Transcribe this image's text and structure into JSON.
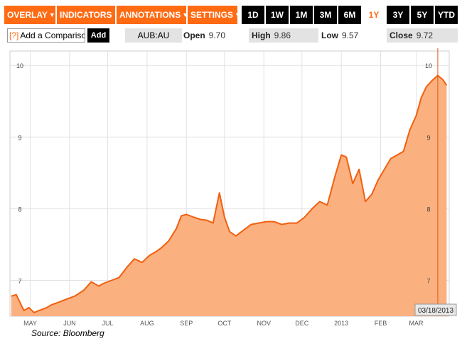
{
  "toolbar": {
    "menus": [
      {
        "label": "OVERLAY",
        "chevron": "▼"
      },
      {
        "label": "INDICATORS",
        "chevron": "▼"
      },
      {
        "label": "ANNOTATIONS",
        "chevron": "▼"
      },
      {
        "label": "SETTINGS",
        "chevron": "▼"
      }
    ],
    "ranges": [
      "1D",
      "1W",
      "1M",
      "3M",
      "6M",
      "1Y",
      "3Y",
      "5Y",
      "YTD"
    ],
    "active_range": "1Y"
  },
  "info_bar": {
    "comparison_help": "[?]",
    "comparison_placeholder": "Add a Comparison",
    "add_label": "Add",
    "ticker": "AUB:AU",
    "open_label": "Open",
    "open_value": "9.70",
    "high_label": "High",
    "high_value": "9.86",
    "low_label": "Low",
    "low_value": "9.57",
    "close_label": "Close",
    "close_value": "9.72"
  },
  "colors": {
    "accent": "#ff6a13",
    "area": "#fbb07f",
    "line": "#f06010"
  },
  "cursor_date": "03/18/2013",
  "source": "Source: Bloomberg",
  "chart_data": {
    "type": "area",
    "x_tick_labels": [
      "MAY",
      "JUN",
      "JUL",
      "AUG",
      "SEP",
      "OCT",
      "NOV",
      "DEC",
      "2013",
      "FEB",
      "MAR"
    ],
    "y_tick_labels": [
      "7",
      "8",
      "9",
      "10"
    ],
    "ylim": [
      6.5,
      10.2
    ],
    "grid": true,
    "series": [
      {
        "x": [
          "2012-04-16",
          "2012-04-20",
          "2012-04-24",
          "2012-04-26",
          "2012-04-30",
          "2012-05-04",
          "2012-05-08",
          "2012-05-14",
          "2012-05-18",
          "2012-05-24",
          "2012-05-30",
          "2012-06-05",
          "2012-06-12",
          "2012-06-18",
          "2012-06-24",
          "2012-06-28",
          "2012-07-04",
          "2012-07-10",
          "2012-07-16",
          "2012-07-22",
          "2012-07-28",
          "2012-08-03",
          "2012-08-08",
          "2012-08-12",
          "2012-08-18",
          "2012-08-24",
          "2012-08-28",
          "2012-09-01",
          "2012-09-07",
          "2012-09-12",
          "2012-09-17",
          "2012-09-22",
          "2012-09-27",
          "2012-10-01",
          "2012-10-05",
          "2012-10-10",
          "2012-10-16",
          "2012-10-22",
          "2012-10-28",
          "2012-11-03",
          "2012-11-09",
          "2012-11-15",
          "2012-11-21",
          "2012-11-27",
          "2012-12-03",
          "2012-12-09",
          "2012-12-15",
          "2012-12-21",
          "2012-12-27",
          "2013-01-01",
          "2013-01-05",
          "2013-01-10",
          "2013-01-15",
          "2013-01-20",
          "2013-01-25",
          "2013-01-30",
          "2013-02-04",
          "2013-02-09",
          "2013-02-14",
          "2013-02-19",
          "2013-02-24",
          "2013-03-01",
          "2013-03-05",
          "2013-03-09",
          "2013-03-13",
          "2013-03-18",
          "2013-03-22",
          "2013-03-25"
        ],
        "values": [
          6.78,
          6.8,
          6.65,
          6.58,
          6.62,
          6.55,
          6.58,
          6.62,
          6.66,
          6.7,
          6.74,
          6.78,
          6.86,
          6.98,
          6.92,
          6.96,
          7.0,
          7.04,
          7.18,
          7.3,
          7.25,
          7.35,
          7.4,
          7.45,
          7.55,
          7.72,
          7.9,
          7.92,
          7.88,
          7.85,
          7.84,
          7.8,
          8.22,
          7.88,
          7.68,
          7.62,
          7.7,
          7.78,
          7.8,
          7.82,
          7.82,
          7.78,
          7.8,
          7.8,
          7.88,
          8.0,
          8.1,
          8.05,
          8.45,
          8.75,
          8.72,
          8.35,
          8.55,
          8.1,
          8.2,
          8.4,
          8.55,
          8.7,
          8.75,
          8.8,
          9.1,
          9.3,
          9.55,
          9.7,
          9.78,
          9.86,
          9.8,
          9.72
        ]
      }
    ]
  }
}
